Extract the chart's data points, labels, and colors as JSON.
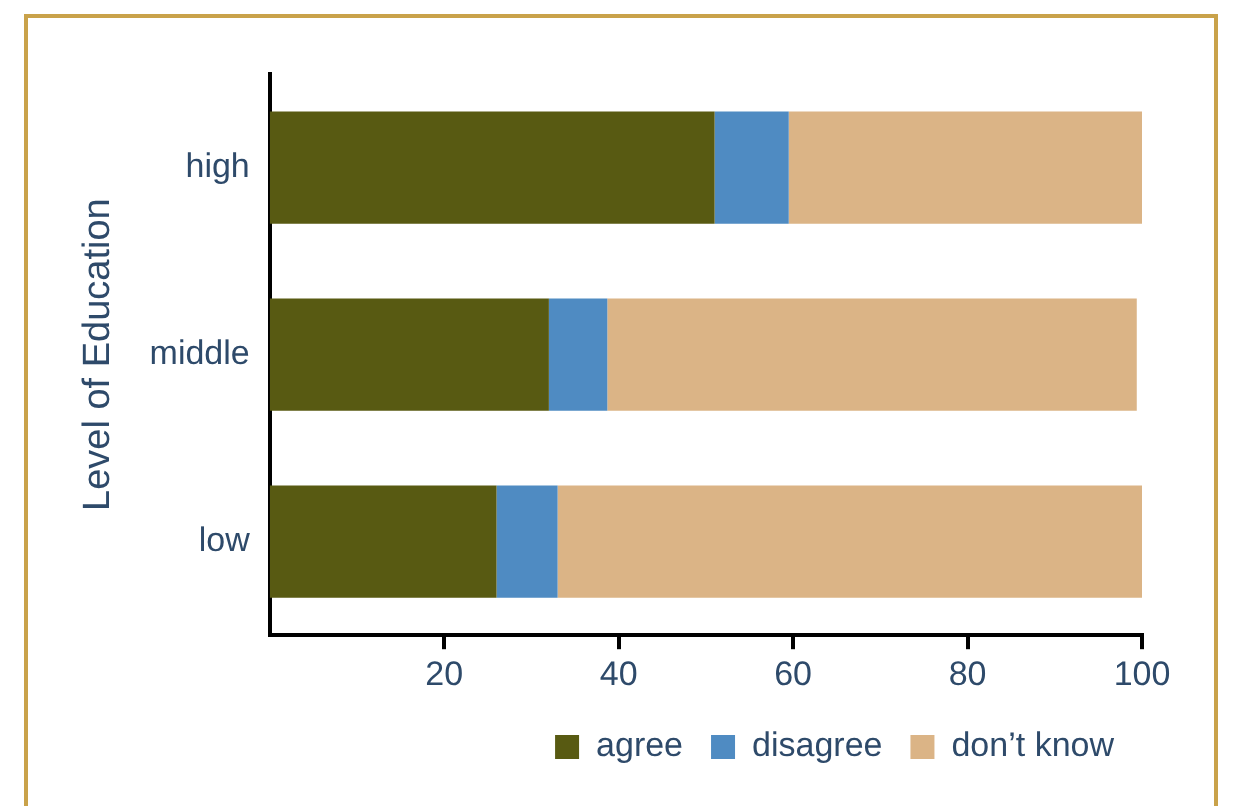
{
  "chart_data": {
    "type": "bar",
    "orientation": "horizontal",
    "stacked": true,
    "ylabel": "Level of Education",
    "categories": [
      "high",
      "middle",
      "low"
    ],
    "series": [
      {
        "name": "agree",
        "color": "#585a12",
        "values": [
          51,
          32,
          26
        ]
      },
      {
        "name": "disagree",
        "color": "#4f8bc2",
        "values": [
          8.5,
          6.7,
          7
        ]
      },
      {
        "name": "don’t know",
        "color": "#dbb486",
        "values": [
          40.5,
          60.7,
          67
        ]
      }
    ],
    "xlim": [
      0,
      100
    ],
    "xticks": [
      20,
      40,
      60,
      80,
      100
    ],
    "grid": false,
    "legend": "bottom right"
  }
}
